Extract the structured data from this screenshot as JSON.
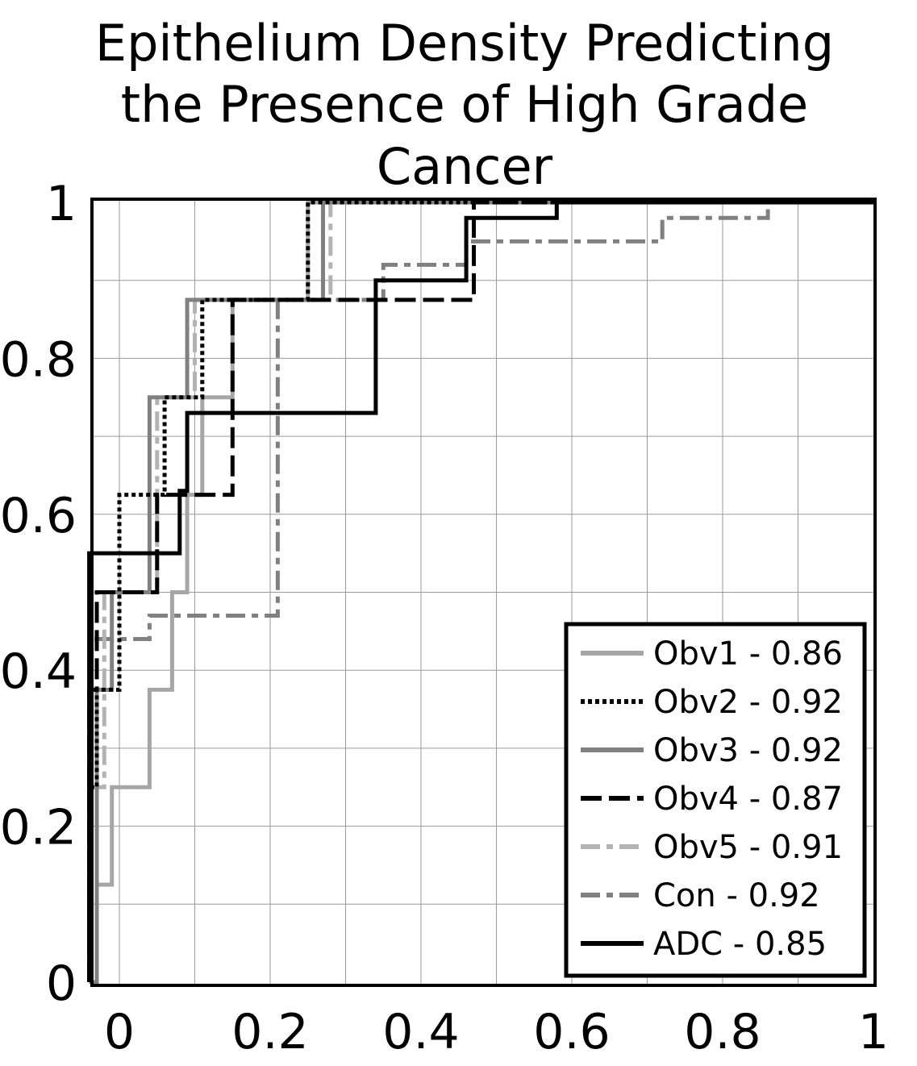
{
  "chart_data": {
    "type": "line",
    "title_lines": [
      "Epithelium Density Predicting",
      "the Presence of High Grade",
      "Cancer"
    ],
    "xlabel": "",
    "ylabel": "",
    "xlim": [
      -0.04,
      1.0
    ],
    "ylim": [
      0,
      1.0
    ],
    "x_ticks": [
      0,
      0.2,
      0.4,
      0.6,
      0.8,
      1
    ],
    "x_tick_labels": [
      "0",
      "0.2",
      "0.4",
      "0.6",
      "0.8",
      "1"
    ],
    "y_ticks": [
      0,
      0.2,
      0.4,
      0.6,
      0.8,
      1
    ],
    "y_tick_labels": [
      "0",
      "0.2",
      "0.4",
      "0.6",
      "0.8",
      "1"
    ],
    "grid": true,
    "legend_position": "bottom-right",
    "series": [
      {
        "name": "Obv1 - 0.86",
        "color": "#a6a6a6",
        "dash": "solid",
        "x": [
          -0.04,
          -0.03,
          -0.03,
          -0.01,
          -0.01,
          0.04,
          0.04,
          0.07,
          0.07,
          0.09,
          0.09,
          0.11,
          0.11,
          0.15,
          0.15,
          0.19,
          0.19,
          0.25,
          0.25,
          0.29,
          0.29,
          0.3,
          0.3,
          1.0
        ],
        "y": [
          0,
          0,
          0.125,
          0.125,
          0.25,
          0.25,
          0.375,
          0.375,
          0.5,
          0.5,
          0.625,
          0.625,
          0.75,
          0.75,
          0.875,
          0.875,
          0.875,
          0.875,
          1.0,
          1.0,
          1.0,
          1.0,
          1.0,
          1.0
        ]
      },
      {
        "name": "Obv2 - 0.92",
        "color": "#000000",
        "dash": "dot",
        "x": [
          -0.04,
          -0.04,
          -0.03,
          -0.03,
          -0.02,
          -0.02,
          0.0,
          0.0,
          0.0,
          0.0,
          0.03,
          0.03,
          0.06,
          0.06,
          0.11,
          0.11,
          0.12,
          0.12,
          0.25,
          0.25,
          0.27,
          0.27,
          1.0
        ],
        "y": [
          0,
          0.25,
          0.25,
          0.375,
          0.375,
          0.375,
          0.375,
          0.5,
          0.5,
          0.625,
          0.625,
          0.625,
          0.625,
          0.75,
          0.75,
          0.875,
          0.875,
          0.875,
          0.875,
          1.0,
          1.0,
          1.0,
          1.0
        ]
      },
      {
        "name": "Obv3 - 0.92",
        "color": "#808080",
        "dash": "solid",
        "x": [
          -0.04,
          -0.03,
          -0.03,
          -0.01,
          -0.01,
          0.04,
          0.04,
          0.09,
          0.09,
          0.27,
          0.27,
          1.0
        ],
        "y": [
          0,
          0,
          0.375,
          0.375,
          0.5,
          0.5,
          0.75,
          0.75,
          0.875,
          0.875,
          1.0,
          1.0
        ]
      },
      {
        "name": "Obv4 - 0.87",
        "color": "#000000",
        "dash": "dash",
        "x": [
          -0.04,
          -0.04,
          -0.03,
          -0.03,
          0.05,
          0.05,
          0.15,
          0.15,
          0.36,
          0.36,
          0.47,
          0.47,
          1.0
        ],
        "y": [
          0,
          0.375,
          0.375,
          0.5,
          0.5,
          0.625,
          0.625,
          0.875,
          0.875,
          0.875,
          0.875,
          1.0,
          1.0
        ]
      },
      {
        "name": "Obv5 - 0.91",
        "color": "#b3b3b3",
        "dash": "dashdot",
        "x": [
          -0.04,
          -0.03,
          -0.03,
          -0.02,
          -0.02,
          0.05,
          0.05,
          0.1,
          0.1,
          0.28,
          0.28,
          1.0
        ],
        "y": [
          0,
          0,
          0.25,
          0.25,
          0.5,
          0.5,
          0.75,
          0.75,
          0.875,
          0.875,
          1.0,
          1.0
        ]
      },
      {
        "name": "Con - 0.92",
        "color": "#808080",
        "dash": "dashdot",
        "x": [
          -0.04,
          -0.04,
          0.04,
          0.04,
          0.09,
          0.09,
          0.21,
          0.21,
          0.35,
          0.35,
          0.46,
          0.46,
          0.72,
          0.72,
          0.86,
          0.86,
          1.0
        ],
        "y": [
          0,
          0.44,
          0.44,
          0.47,
          0.47,
          0.47,
          0.47,
          0.875,
          0.875,
          0.92,
          0.92,
          0.95,
          0.95,
          0.98,
          0.98,
          1.0,
          1.0
        ]
      },
      {
        "name": "ADC - 0.85",
        "color": "#000000",
        "dash": "solid",
        "x": [
          -0.04,
          -0.04,
          0.08,
          0.08,
          0.09,
          0.09,
          0.25,
          0.25,
          0.34,
          0.34,
          0.46,
          0.46,
          0.58,
          0.58,
          1.0
        ],
        "y": [
          0,
          0.55,
          0.55,
          0.63,
          0.63,
          0.73,
          0.73,
          0.73,
          0.73,
          0.9,
          0.9,
          0.98,
          0.98,
          1.0,
          1.0
        ]
      }
    ]
  }
}
